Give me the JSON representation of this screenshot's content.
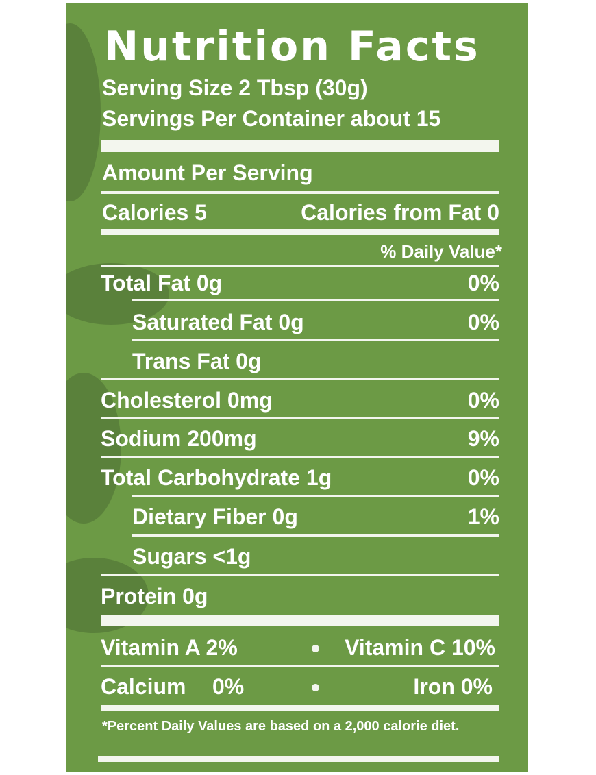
{
  "header": {
    "title": "Nutrition Facts",
    "serving_size": "Serving Size 2 Tbsp (30g)",
    "servings_per_container": "Servings Per Container about 15"
  },
  "amount_per_serving": "Amount Per Serving",
  "calories": {
    "label": "Calories 5",
    "from_fat": "Calories from Fat 0"
  },
  "daily_value_header": "% Daily Value*",
  "nutrients": [
    {
      "label": "Total Fat 0g",
      "dv": "0%"
    },
    {
      "label": "Saturated Fat 0g",
      "dv": "0%"
    },
    {
      "label": "Trans Fat 0g",
      "dv": ""
    },
    {
      "label": "Cholesterol 0mg",
      "dv": "0%"
    },
    {
      "label": "Sodium 200mg",
      "dv": "9%"
    },
    {
      "label": "Total Carbohydrate 1g",
      "dv": "0%"
    },
    {
      "label": "Dietary Fiber 0g",
      "dv": "1%"
    },
    {
      "label": "Sugars <1g",
      "dv": ""
    },
    {
      "label": "Protein 0g",
      "dv": ""
    }
  ],
  "vitamins": {
    "vitamin_a": "Vitamin A 2%",
    "vitamin_c": "Vitamin C 10%",
    "calcium_label": "Calcium",
    "calcium_value": "0%",
    "iron": "Iron 0%"
  },
  "footnote": "*Percent Daily Values are based on a 2,000 calorie diet.",
  "colors": {
    "background": "#6c9a45",
    "text": "#ffffff",
    "pattern": "#4d6e33"
  }
}
